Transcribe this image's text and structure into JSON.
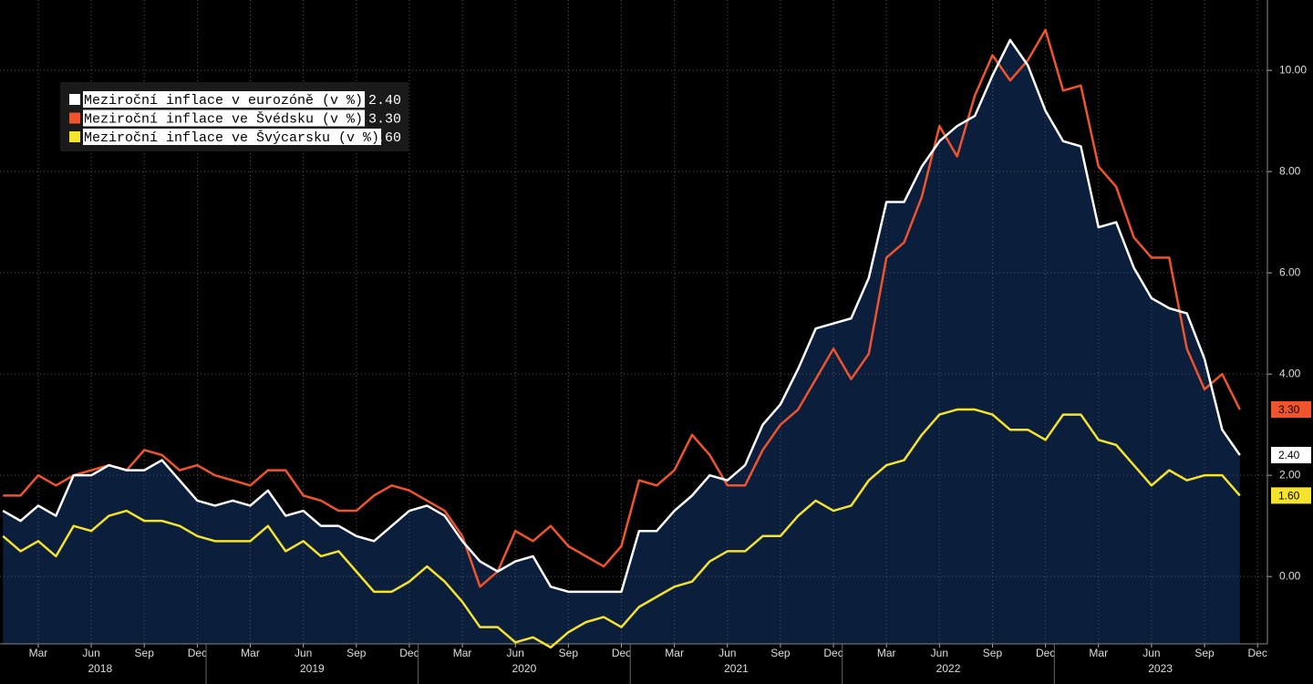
{
  "chart_data": {
    "type": "line",
    "categories": [
      "2018-01",
      "2018-02",
      "2018-03",
      "2018-04",
      "2018-05",
      "2018-06",
      "2018-07",
      "2018-08",
      "2018-09",
      "2018-10",
      "2018-11",
      "2018-12",
      "2019-01",
      "2019-02",
      "2019-03",
      "2019-04",
      "2019-05",
      "2019-06",
      "2019-07",
      "2019-08",
      "2019-09",
      "2019-10",
      "2019-11",
      "2019-12",
      "2020-01",
      "2020-02",
      "2020-03",
      "2020-04",
      "2020-05",
      "2020-06",
      "2020-07",
      "2020-08",
      "2020-09",
      "2020-10",
      "2020-11",
      "2020-12",
      "2021-01",
      "2021-02",
      "2021-03",
      "2021-04",
      "2021-05",
      "2021-06",
      "2021-07",
      "2021-08",
      "2021-09",
      "2021-10",
      "2021-11",
      "2021-12",
      "2022-01",
      "2022-02",
      "2022-03",
      "2022-04",
      "2022-05",
      "2022-06",
      "2022-07",
      "2022-08",
      "2022-09",
      "2022-10",
      "2022-11",
      "2022-12",
      "2023-01",
      "2023-02",
      "2023-03",
      "2023-04",
      "2023-05",
      "2023-06",
      "2023-07",
      "2023-08",
      "2023-09",
      "2023-10",
      "2023-11"
    ],
    "series": [
      {
        "name": "Meziroční inflace v eurozóně (v %)",
        "color": "#ffffff",
        "last_label": "2.40",
        "values": [
          1.3,
          1.1,
          1.4,
          1.2,
          2.0,
          2.0,
          2.2,
          2.1,
          2.1,
          2.3,
          1.9,
          1.5,
          1.4,
          1.5,
          1.4,
          1.7,
          1.2,
          1.3,
          1.0,
          1.0,
          0.8,
          0.7,
          1.0,
          1.3,
          1.4,
          1.2,
          0.7,
          0.3,
          0.1,
          0.3,
          0.4,
          -0.2,
          -0.3,
          -0.3,
          -0.3,
          -0.3,
          0.9,
          0.9,
          1.3,
          1.6,
          2.0,
          1.9,
          2.2,
          3.0,
          3.4,
          4.1,
          4.9,
          5.0,
          5.1,
          5.9,
          7.4,
          7.4,
          8.1,
          8.6,
          8.9,
          9.1,
          9.9,
          10.6,
          10.1,
          9.2,
          8.6,
          8.5,
          6.9,
          7.0,
          6.1,
          5.5,
          5.3,
          5.2,
          4.3,
          2.9,
          2.4
        ]
      },
      {
        "name": "Meziroční inflace ve Švédsku (v %)",
        "color": "#f0542c",
        "last_label": "3.30",
        "values": [
          1.6,
          1.6,
          2.0,
          1.8,
          2.0,
          2.1,
          2.2,
          2.1,
          2.5,
          2.4,
          2.1,
          2.2,
          2.0,
          1.9,
          1.8,
          2.1,
          2.1,
          1.6,
          1.5,
          1.3,
          1.3,
          1.6,
          1.8,
          1.7,
          1.5,
          1.3,
          0.8,
          -0.2,
          0.1,
          0.9,
          0.7,
          1.0,
          0.6,
          0.4,
          0.2,
          0.6,
          1.9,
          1.8,
          2.1,
          2.8,
          2.4,
          1.8,
          1.8,
          2.5,
          3.0,
          3.3,
          3.9,
          4.5,
          3.9,
          4.4,
          6.3,
          6.6,
          7.5,
          8.9,
          8.3,
          9.5,
          10.3,
          9.8,
          10.2,
          10.8,
          9.6,
          9.7,
          8.1,
          7.7,
          6.7,
          6.3,
          6.3,
          4.5,
          3.7,
          4.0,
          3.3
        ]
      },
      {
        "name": "Meziroční inflace ve Švýcarsku (v %)",
        "color": "#f5e32e",
        "last_label": "1.60",
        "values": [
          0.8,
          0.5,
          0.7,
          0.4,
          1.0,
          0.9,
          1.2,
          1.3,
          1.1,
          1.1,
          1.0,
          0.8,
          0.7,
          0.7,
          0.7,
          1.0,
          0.5,
          0.7,
          0.4,
          0.5,
          0.1,
          -0.3,
          -0.3,
          -0.1,
          0.2,
          -0.1,
          -0.5,
          -1.0,
          -1.0,
          -1.3,
          -1.2,
          -1.4,
          -1.1,
          -0.9,
          -0.8,
          -1.0,
          -0.6,
          -0.4,
          -0.2,
          -0.1,
          0.3,
          0.5,
          0.5,
          0.8,
          0.8,
          1.2,
          1.5,
          1.3,
          1.4,
          1.9,
          2.2,
          2.3,
          2.8,
          3.2,
          3.3,
          3.3,
          3.2,
          2.9,
          2.9,
          2.7,
          3.2,
          3.2,
          2.7,
          2.6,
          2.2,
          1.8,
          2.1,
          1.9,
          2.0,
          2.0,
          1.6
        ]
      }
    ],
    "area_color": "#0b1e3c",
    "ylim": [
      -1.33,
      11.39
    ],
    "yticks": [
      {
        "value": 0,
        "label": "0.00"
      },
      {
        "value": 2,
        "label": "2.00"
      },
      {
        "value": 4,
        "label": "4.00"
      },
      {
        "value": 6,
        "label": "6.00"
      },
      {
        "value": 8,
        "label": "8.00"
      },
      {
        "value": 10,
        "label": "10.00"
      }
    ],
    "xticks": [
      {
        "value": "2018-03",
        "label": "Mar"
      },
      {
        "value": "2018-06",
        "label": "Jun"
      },
      {
        "value": "2018-09",
        "label": "Sep"
      },
      {
        "value": "2018-12",
        "label": "Dec"
      },
      {
        "value": "2019-03",
        "label": "Mar"
      },
      {
        "value": "2019-06",
        "label": "Jun"
      },
      {
        "value": "2019-09",
        "label": "Sep"
      },
      {
        "value": "2019-12",
        "label": "Dec"
      },
      {
        "value": "2020-03",
        "label": "Mar"
      },
      {
        "value": "2020-06",
        "label": "Jun"
      },
      {
        "value": "2020-09",
        "label": "Sep"
      },
      {
        "value": "2020-12",
        "label": "Dec"
      },
      {
        "value": "2021-03",
        "label": "Mar"
      },
      {
        "value": "2021-06",
        "label": "Jun"
      },
      {
        "value": "2021-09",
        "label": "Sep"
      },
      {
        "value": "2021-12",
        "label": "Dec"
      },
      {
        "value": "2022-03",
        "label": "Mar"
      },
      {
        "value": "2022-06",
        "label": "Jun"
      },
      {
        "value": "2022-09",
        "label": "Sep"
      },
      {
        "value": "2022-12",
        "label": "Dec"
      },
      {
        "value": "2023-03",
        "label": "Mar"
      },
      {
        "value": "2023-06",
        "label": "Jun"
      },
      {
        "value": "2023-09",
        "label": "Sep"
      },
      {
        "value": "2023-12",
        "label": "Dec"
      }
    ],
    "years": [
      "2018",
      "2019",
      "2020",
      "2021",
      "2022",
      "2023"
    ],
    "grid": true
  }
}
